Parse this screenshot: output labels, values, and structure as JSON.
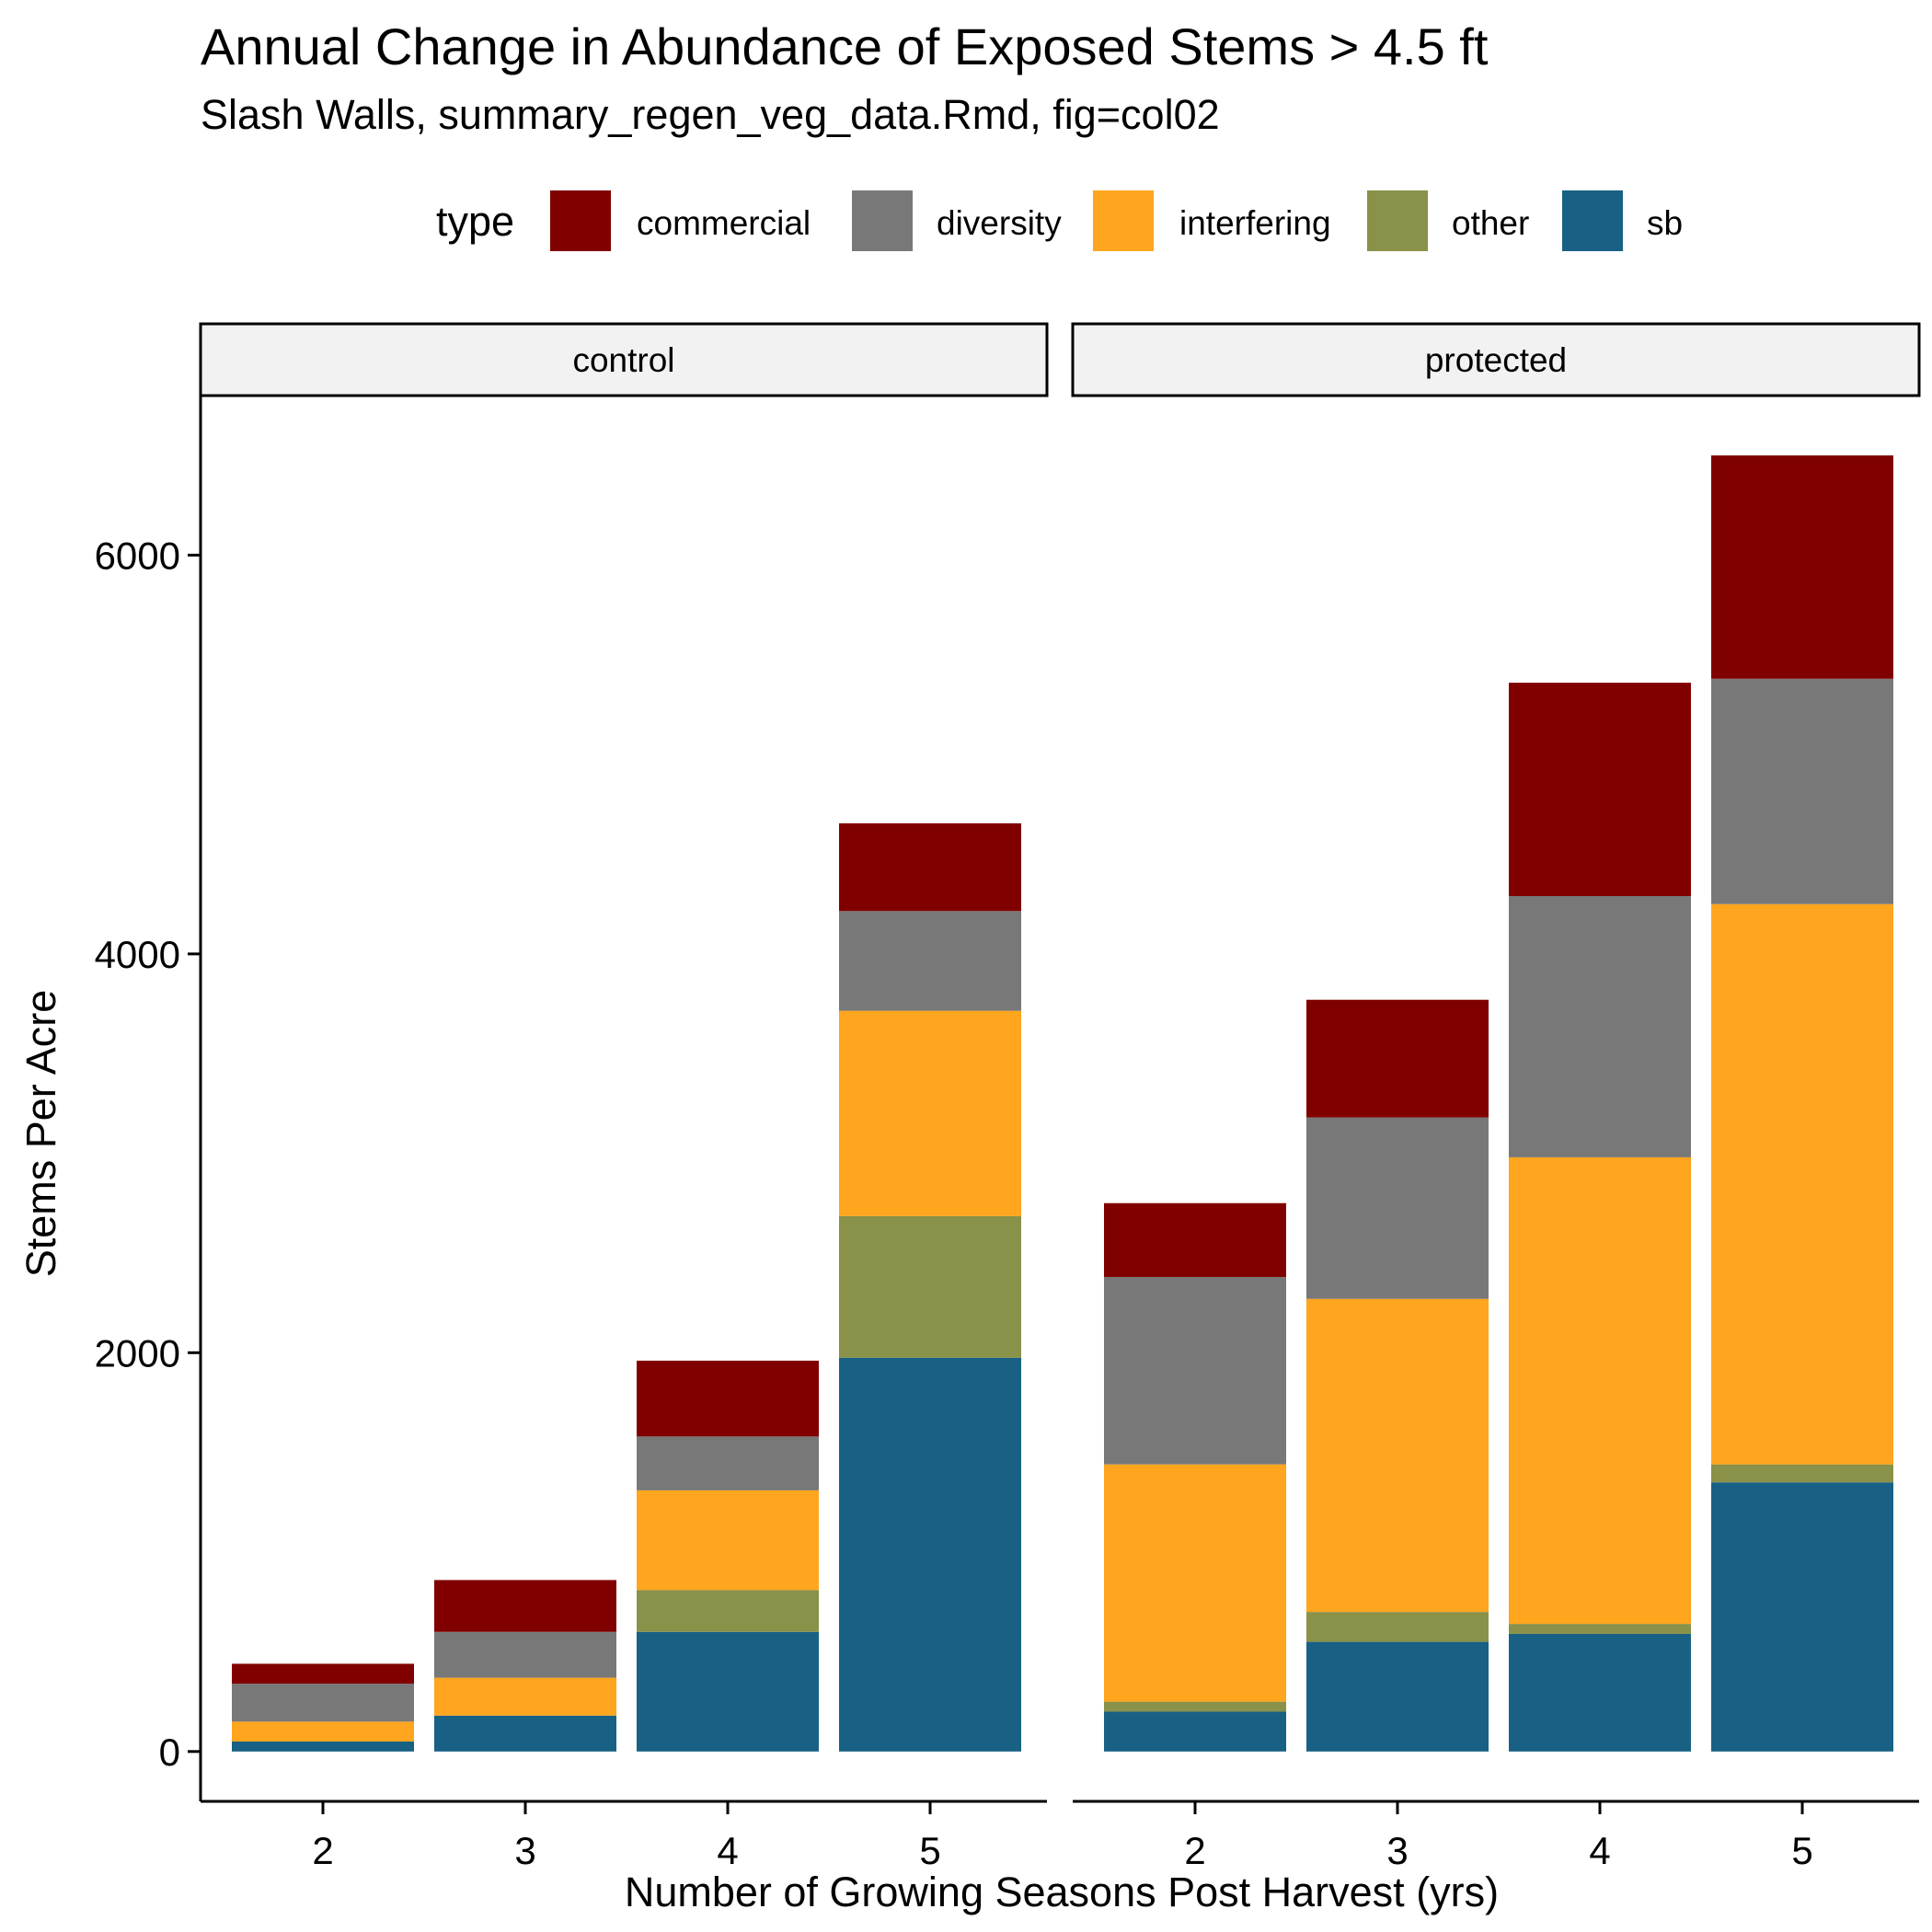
{
  "chart_data": {
    "type": "bar",
    "stacked": true,
    "title": "Annual Change in Abundance of Exposed Stems > 4.5 ft",
    "subtitle": "Slash Walls, summary_regen_veg_data.Rmd, fig=col02",
    "xlabel": "Number of Growing Seasons Post Harvest (yrs)",
    "ylabel": "Stems Per Acre",
    "ylim": [
      -250,
      6800
    ],
    "yticks": [
      0,
      2000,
      4000,
      6000
    ],
    "categories": [
      "2",
      "3",
      "4",
      "5"
    ],
    "legend": {
      "title": "type",
      "position": "top",
      "entries": [
        {
          "key": "commercial",
          "label": "commercial",
          "color": "#800000"
        },
        {
          "key": "diversity",
          "label": "diversity",
          "color": "#787878"
        },
        {
          "key": "interfering",
          "label": "interfering",
          "color": "#FFA51E"
        },
        {
          "key": "other",
          "label": "other",
          "color": "#8A9148"
        },
        {
          "key": "sb",
          "label": "sb",
          "color": "#186184"
        }
      ]
    },
    "stack_order_bottom_to_top": [
      "sb",
      "other",
      "interfering",
      "diversity",
      "commercial"
    ],
    "panels": [
      {
        "label": "control",
        "series": [
          {
            "name": "sb",
            "values": [
              50,
              180,
              600,
              1975
            ]
          },
          {
            "name": "other",
            "values": [
              0,
              0,
              210,
              710
            ]
          },
          {
            "name": "interfering",
            "values": [
              100,
              190,
              500,
              1030
            ]
          },
          {
            "name": "diversity",
            "values": [
              190,
              230,
              270,
              500
            ]
          },
          {
            "name": "commercial",
            "values": [
              100,
              260,
              380,
              440
            ]
          }
        ]
      },
      {
        "label": "protected",
        "series": [
          {
            "name": "sb",
            "values": [
              200,
              550,
              590,
              1350
            ]
          },
          {
            "name": "other",
            "values": [
              50,
              150,
              50,
              90
            ]
          },
          {
            "name": "interfering",
            "values": [
              1190,
              1570,
              2340,
              2810
            ]
          },
          {
            "name": "diversity",
            "values": [
              940,
              910,
              1310,
              1130
            ]
          },
          {
            "name": "commercial",
            "values": [
              370,
              590,
              1070,
              1120
            ]
          }
        ]
      }
    ]
  }
}
